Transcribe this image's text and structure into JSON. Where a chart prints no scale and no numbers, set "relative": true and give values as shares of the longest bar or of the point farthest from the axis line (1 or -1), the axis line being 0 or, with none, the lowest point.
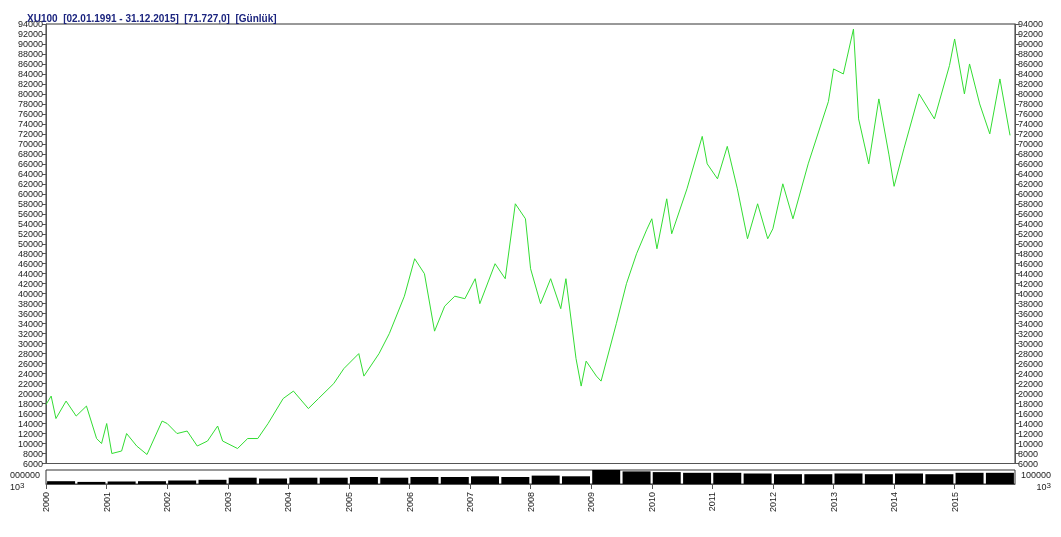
{
  "chart_data": [
    {
      "type": "line",
      "title": "XU100  [02.01.1991 - 31.12.2015]  [71.727,0]  [Günlük]",
      "x": [
        "2000-01",
        "2000-02",
        "2000-03",
        "2000-05",
        "2000-07",
        "2000-09",
        "2000-11",
        "2000-12",
        "2001-01",
        "2001-02",
        "2001-04",
        "2001-05",
        "2001-07",
        "2001-09",
        "2001-12",
        "2002-01",
        "2002-03",
        "2002-05",
        "2002-07",
        "2002-09",
        "2002-11",
        "2002-12",
        "2003-03",
        "2003-05",
        "2003-07",
        "2003-09",
        "2003-12",
        "2004-02",
        "2004-05",
        "2004-07",
        "2004-10",
        "2004-12",
        "2005-03",
        "2005-04",
        "2005-07",
        "2005-09",
        "2005-12",
        "2006-02",
        "2006-04",
        "2006-06",
        "2006-08",
        "2006-10",
        "2006-12",
        "2007-02",
        "2007-03",
        "2007-06",
        "2007-08",
        "2007-10",
        "2007-12",
        "2008-01",
        "2008-03",
        "2008-05",
        "2008-07",
        "2008-08",
        "2008-10",
        "2008-11",
        "2008-12",
        "2009-02",
        "2009-03",
        "2009-06",
        "2009-08",
        "2009-10",
        "2009-12",
        "2010-01",
        "2010-02",
        "2010-04",
        "2010-05",
        "2010-08",
        "2010-11",
        "2010-12",
        "2011-02",
        "2011-04",
        "2011-06",
        "2011-08",
        "2011-10",
        "2011-12",
        "2012-01",
        "2012-03",
        "2012-05",
        "2012-08",
        "2012-12",
        "2013-01",
        "2013-03",
        "2013-05",
        "2013-06",
        "2013-08",
        "2013-10",
        "2013-12",
        "2014-01",
        "2014-03",
        "2014-06",
        "2014-09",
        "2014-12",
        "2015-01",
        "2015-03",
        "2015-04",
        "2015-06",
        "2015-08",
        "2015-10",
        "2015-12"
      ],
      "series": [
        {
          "color": "#33dd33",
          "values": [
            17800,
            19500,
            15000,
            18500,
            15500,
            17500,
            11000,
            10000,
            14000,
            8000,
            8500,
            12000,
            9500,
            7800,
            14500,
            14000,
            12000,
            12500,
            9500,
            10500,
            13500,
            10500,
            9000,
            11000,
            11000,
            14000,
            19000,
            20500,
            17000,
            19000,
            22000,
            25000,
            28000,
            23500,
            28000,
            32000,
            39500,
            47000,
            44000,
            32500,
            37500,
            39500,
            39000,
            43000,
            38000,
            46000,
            43000,
            58000,
            55000,
            45000,
            38000,
            43000,
            37000,
            43000,
            27000,
            21500,
            26500,
            23500,
            22500,
            34000,
            42000,
            48000,
            52800,
            55000,
            49000,
            59000,
            52000,
            61000,
            71500,
            66000,
            63000,
            69500,
            61000,
            51000,
            58000,
            51000,
            53000,
            62000,
            55000,
            66000,
            78500,
            85000,
            84000,
            93000,
            75000,
            66000,
            79000,
            67800,
            61500,
            69000,
            80000,
            75000,
            85700,
            91000,
            80000,
            86000,
            78000,
            72000,
            83000,
            71700
          ]
        }
      ],
      "xlim": [
        "2000-01-01",
        "2015-12-31"
      ],
      "ylim": [
        6000,
        94000
      ],
      "yticks": [
        6000,
        8000,
        10000,
        12000,
        14000,
        16000,
        18000,
        20000,
        22000,
        24000,
        26000,
        28000,
        30000,
        32000,
        34000,
        36000,
        38000,
        40000,
        42000,
        44000,
        46000,
        48000,
        50000,
        52000,
        54000,
        56000,
        58000,
        60000,
        62000,
        64000,
        66000,
        68000,
        70000,
        72000,
        74000,
        76000,
        78000,
        80000,
        82000,
        84000,
        86000,
        88000,
        90000,
        92000,
        94000
      ],
      "y2lim": [
        6000,
        94000
      ],
      "y2ticks": [
        6000,
        8000,
        10000,
        12000,
        14000,
        16000,
        18000,
        20000,
        22000,
        24000,
        26000,
        28000,
        30000,
        32000,
        34000,
        36000,
        38000,
        40000,
        42000,
        44000,
        46000,
        48000,
        50000,
        52000,
        54000,
        56000,
        58000,
        60000,
        62000,
        64000,
        66000,
        68000,
        70000,
        72000,
        74000,
        76000,
        78000,
        80000,
        82000,
        84000,
        86000,
        88000,
        90000,
        92000,
        94000
      ],
      "tick_labels": "y"
    },
    {
      "type": "bar",
      "relative": true,
      "x": [
        "2000-04",
        "2000-10",
        "2001-04",
        "2001-10",
        "2002-04",
        "2002-10",
        "2003-04",
        "2003-10",
        "2004-04",
        "2004-10",
        "2005-04",
        "2005-10",
        "2006-04",
        "2006-10",
        "2007-04",
        "2007-10",
        "2008-04",
        "2008-10",
        "2009-04",
        "2009-10",
        "2010-04",
        "2010-10",
        "2011-04",
        "2011-10",
        "2012-04",
        "2012-10",
        "2013-04",
        "2013-10",
        "2014-04",
        "2014-10",
        "2015-04",
        "2015-10"
      ],
      "series": [
        {
          "color": "#000000",
          "values": [
            0.2,
            0.15,
            0.18,
            0.2,
            0.25,
            0.3,
            0.45,
            0.4,
            0.45,
            0.45,
            0.5,
            0.45,
            0.5,
            0.5,
            0.55,
            0.5,
            0.6,
            0.55,
            1.0,
            0.9,
            0.85,
            0.8,
            0.8,
            0.75,
            0.7,
            0.7,
            0.75,
            0.7,
            0.75,
            0.7,
            0.8,
            0.8
          ]
        }
      ],
      "xlim": [
        "2000-01-01",
        "2015-12-31"
      ],
      "xticks": [
        {
          "value": "2000-01-01",
          "label": "2000"
        },
        {
          "value": "2001-01-01",
          "label": "2001"
        },
        {
          "value": "2002-01-01",
          "label": "2002"
        },
        {
          "value": "2003-01-01",
          "label": "2003"
        },
        {
          "value": "2004-01-01",
          "label": "2004"
        },
        {
          "value": "2005-01-01",
          "label": "2005"
        },
        {
          "value": "2006-01-01",
          "label": "2006"
        },
        {
          "value": "2007-01-01",
          "label": "2007"
        },
        {
          "value": "2008-01-01",
          "label": "2008"
        },
        {
          "value": "2009-01-01",
          "label": "2009"
        },
        {
          "value": "2010-01-01",
          "label": "2010"
        },
        {
          "value": "2011-01-01",
          "label": "2011"
        },
        {
          "value": "2012-01-01",
          "label": "2012"
        },
        {
          "value": "2013-01-01",
          "label": "2013"
        },
        {
          "value": "2014-01-01",
          "label": "2014"
        },
        {
          "value": "2015-01-01",
          "label": "2015"
        }
      ],
      "tick_labels": "x",
      "annotations": [
        "000000",
        "10$^{3}$",
        "100000",
        "10$^{3}$"
      ]
    }
  ]
}
